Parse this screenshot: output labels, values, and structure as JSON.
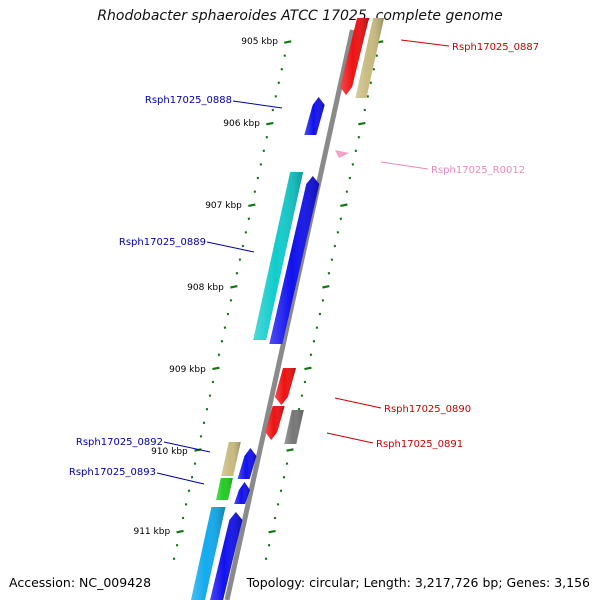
{
  "title": "Rhodobacter sphaeroides ATCC 17025, complete genome",
  "footer": {
    "accession": "Accession: NC_009428",
    "summary": "Topology: circular; Length: 3,217,726 bp; Genes: 3,156"
  },
  "colors": {
    "forward_label": "#cc0000",
    "reverse_label": "#0000aa",
    "rna_label": "#ee88bb",
    "backbone": "#8a8a8a",
    "ticks": "#117711"
  },
  "ticks": [
    "905 kbp",
    "906 kbp",
    "907 kbp",
    "908 kbp",
    "909 kbp",
    "910 kbp",
    "911 kbp"
  ],
  "genes": [
    {
      "id": "Rsph17025_0887",
      "strand": "forward",
      "color": "#ee1111"
    },
    {
      "id": "Rsph17025_0888",
      "strand": "reverse",
      "color": "#1111ee"
    },
    {
      "id": "Rsph17025_R0012",
      "strand": "forward",
      "color": "#f4a0c8"
    },
    {
      "id": "Rsph17025_0889",
      "strand": "reverse",
      "color": "#1111ee"
    },
    {
      "id": "Rsph17025_0890",
      "strand": "forward",
      "color": "#ee1111"
    },
    {
      "id": "Rsph17025_0891",
      "strand": "forward",
      "color": "#ee1111"
    },
    {
      "id": "Rsph17025_0892",
      "strand": "reverse",
      "color": "#1111ee"
    },
    {
      "id": "Rsph17025_0893",
      "strand": "reverse",
      "color": "#1111ee"
    }
  ],
  "orfs": [
    {
      "name": "khaki-orf-top",
      "color": "#c8bb80"
    },
    {
      "name": "cyan-orf-0889",
      "color": "#11cccc"
    },
    {
      "name": "gray-orf-0891",
      "color": "#777777"
    },
    {
      "name": "khaki-orf-0892",
      "color": "#c8bb80"
    },
    {
      "name": "green-orf-0893",
      "color": "#22cc22"
    },
    {
      "name": "skyblue-orf-bottom",
      "color": "#11aaee"
    }
  ]
}
